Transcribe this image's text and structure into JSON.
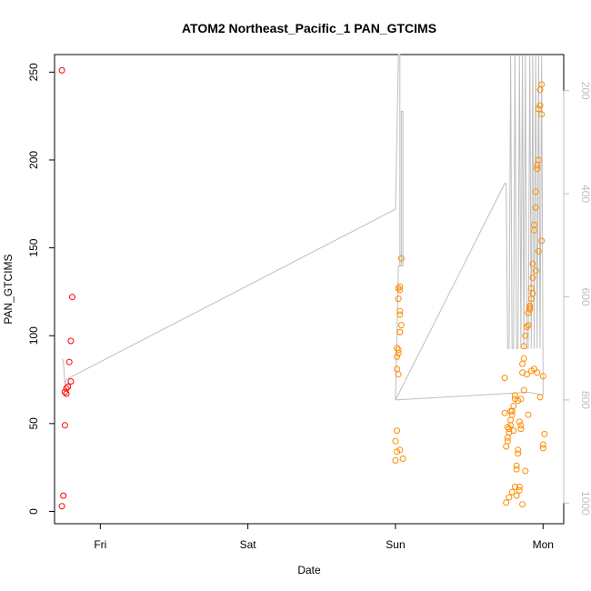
{
  "chart_data": {
    "type": "scatter",
    "title": "ATOM2 Northeast_Pacific_1 PAN_GTCIMS",
    "xlabel": "Date",
    "ylabel": "PAN_GTCIMS",
    "xlim": [
      -0.31,
      3.14
    ],
    "ylim": [
      -7,
      260
    ],
    "x_ticks": [
      {
        "label": "Fri",
        "value": 0
      },
      {
        "label": "Sat",
        "value": 1
      },
      {
        "label": "Sun",
        "value": 2
      },
      {
        "label": "Mon",
        "value": 3
      }
    ],
    "y_ticks": [
      0,
      50,
      100,
      150,
      200,
      250
    ],
    "y2_ticks": [
      200,
      400,
      600,
      800,
      1000
    ],
    "y2lim": [
      1040,
      130
    ],
    "grid": false,
    "colors": {
      "series_red": "#ff0000",
      "series_orange": "#ff8c00",
      "altitude_line": "#bebebe"
    },
    "series": [
      {
        "color": "red",
        "x": [
          -0.26,
          -0.26,
          -0.25,
          -0.24,
          -0.24,
          -0.23,
          -0.23,
          -0.22,
          -0.21,
          -0.2,
          -0.2,
          -0.19
        ],
        "y": [
          251,
          3,
          9,
          68,
          49,
          70,
          67,
          71,
          85,
          74,
          97,
          122
        ]
      },
      {
        "color": "orange",
        "x": [
          2.0,
          2.01,
          2.0,
          2.01,
          2.02,
          2.01,
          2.01,
          2.02,
          2.02,
          2.01,
          2.03,
          2.03,
          2.04,
          2.03,
          2.03,
          2.02,
          2.04,
          2.03,
          2.02,
          2.03,
          2.05,
          2.03,
          2.74,
          2.75,
          2.76,
          2.76,
          2.77,
          2.77,
          2.78,
          2.78,
          2.79,
          2.79,
          2.8,
          2.81,
          2.81,
          2.82,
          2.82,
          2.83,
          2.83,
          2.84,
          2.84,
          2.85,
          2.85,
          2.86,
          2.86,
          2.87,
          2.87,
          2.88,
          2.89,
          2.9,
          2.9,
          2.91,
          2.91,
          2.92,
          2.92,
          2.93,
          2.93,
          2.94,
          2.94,
          2.95,
          2.95,
          2.96,
          2.96,
          2.97,
          2.97,
          2.98,
          2.98,
          2.99,
          2.99,
          3.0,
          3.0,
          3.01,
          2.74,
          2.76,
          2.78,
          2.8,
          2.82,
          2.84,
          2.86,
          2.88,
          2.9,
          2.92,
          2.94,
          2.96,
          2.98,
          3.0,
          2.75,
          2.77,
          2.79,
          2.81,
          2.83,
          2.85,
          2.87,
          2.89,
          2.91,
          2.93,
          2.95,
          2.97,
          2.99
        ],
        "y": [
          29,
          34,
          40,
          46,
          78,
          81,
          88,
          90,
          92,
          93,
          102,
          102,
          106,
          112,
          114,
          121,
          144,
          126,
          127,
          128,
          30,
          35,
          76,
          37,
          40,
          42,
          45,
          47,
          49,
          52,
          55,
          57,
          60,
          64,
          66,
          24,
          26,
          33,
          35,
          12,
          14,
          64,
          47,
          79,
          84,
          87,
          94,
          100,
          105,
          106,
          113,
          115,
          117,
          121,
          127,
          133,
          141,
          160,
          163,
          173,
          182,
          195,
          197,
          200,
          229,
          231,
          240,
          243,
          226,
          77,
          38,
          44,
          56,
          48,
          57,
          46,
          9,
          51,
          4,
          23,
          55,
          80,
          81,
          79,
          65,
          36,
          5,
          8,
          11,
          14,
          63,
          49,
          69,
          78,
          116,
          124,
          137,
          148,
          154
        ]
      }
    ],
    "altitude_line": {
      "axis": "right",
      "x": [
        -0.26,
        -0.25,
        -0.24,
        -0.23,
        2.0,
        2.02,
        2.02,
        2.02,
        2.03,
        2.03,
        2.03,
        2.04,
        2.04,
        2.04,
        2.05,
        2.05,
        2.05,
        2.05,
        2.04,
        2.03,
        2.02,
        2.0,
        2.0,
        2.0,
        2.0,
        2.74,
        2.75,
        2.76,
        2.77,
        2.78,
        2.79,
        2.8,
        2.81,
        2.82,
        2.83,
        2.84,
        2.85,
        2.86,
        2.87,
        2.88,
        2.89,
        2.9,
        2.91,
        2.92,
        2.93,
        2.94,
        2.95,
        2.96,
        2.97,
        2.98,
        2.99,
        3.0,
        3.0,
        2.9,
        2.0,
        2.0
      ],
      "y": [
        720,
        725,
        770,
        760,
        430,
        130,
        130,
        130,
        130,
        130,
        540,
        540,
        540,
        240,
        240,
        540,
        540,
        540,
        540,
        540,
        540,
        800,
        800,
        800,
        800,
        380,
        380,
        700,
        700,
        130,
        700,
        700,
        130,
        700,
        700,
        130,
        700,
        130,
        700,
        130,
        700,
        700,
        130,
        700,
        130,
        700,
        130,
        700,
        130,
        700,
        130,
        770,
        790,
        785,
        800,
        800
      ]
    }
  }
}
